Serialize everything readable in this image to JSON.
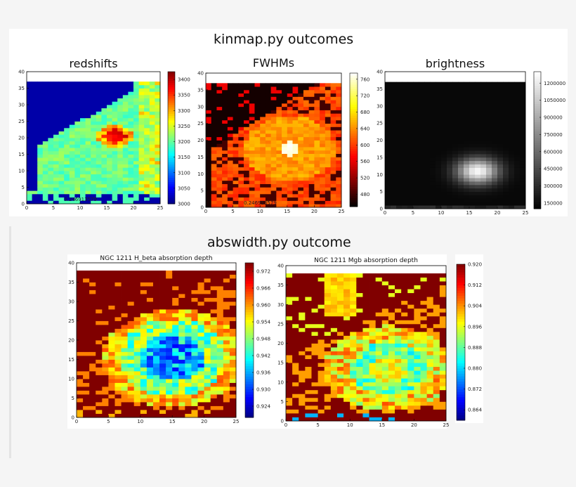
{
  "top_section": {
    "title": "kinmap.py outcomes"
  },
  "bottom_section": {
    "title": "abswidth.py outcome"
  },
  "chart_data": [
    {
      "type": "heatmap",
      "title": "redshifts",
      "colormap": "jet",
      "xlim": [
        0,
        25
      ],
      "ylim": [
        0,
        40
      ],
      "xticks": [
        0,
        5,
        10,
        15,
        20,
        25
      ],
      "yticks": [
        0,
        5,
        10,
        15,
        20,
        25,
        30,
        35,
        40
      ],
      "colorbar": {
        "min": 3000,
        "max": 3425,
        "ticks": [
          3000,
          3050,
          3100,
          3150,
          3200,
          3250,
          3300,
          3350,
          3400
        ]
      },
      "overlay_text": "0.246913579"
    },
    {
      "type": "heatmap",
      "title": "FWHMs",
      "colormap": "hot",
      "xlim": [
        0,
        25
      ],
      "ylim": [
        0,
        40
      ],
      "xticks": [
        0,
        5,
        10,
        15,
        20,
        25
      ],
      "yticks": [
        0,
        5,
        10,
        15,
        20,
        25,
        30,
        35,
        40
      ],
      "colorbar": {
        "min": 450,
        "max": 775,
        "ticks": [
          480,
          520,
          560,
          600,
          640,
          680,
          720,
          760
        ]
      },
      "overlay_text": "0.246913579"
    },
    {
      "type": "heatmap",
      "title": "brightness",
      "colormap": "gray",
      "xlim": [
        0,
        25
      ],
      "ylim": [
        0,
        40
      ],
      "xticks": [
        0,
        5,
        10,
        15,
        20,
        25
      ],
      "yticks": [
        0,
        5,
        10,
        15,
        20,
        25,
        30,
        35,
        40
      ],
      "colorbar": {
        "min": 100000,
        "max": 1300000,
        "ticks": [
          150000,
          300000,
          450000,
          600000,
          750000,
          900000,
          1050000,
          1200000
        ]
      }
    },
    {
      "type": "heatmap",
      "title": "NGC 1211 H_beta absorption depth",
      "colormap": "jet",
      "xlim": [
        0,
        25
      ],
      "ylim": [
        0,
        40
      ],
      "xticks": [
        0,
        5,
        10,
        15,
        20,
        25
      ],
      "yticks": [
        0,
        5,
        10,
        15,
        20,
        25,
        30,
        35,
        40
      ],
      "colorbar": {
        "min": 0.92,
        "max": 0.975,
        "ticks": [
          0.924,
          0.93,
          0.936,
          0.942,
          0.948,
          0.954,
          0.96,
          0.966,
          0.972
        ]
      }
    },
    {
      "type": "heatmap",
      "title": "NGC 1211 Mgb absorption depth",
      "colormap": "jet",
      "xlim": [
        0,
        25
      ],
      "ylim": [
        0,
        40
      ],
      "xticks": [
        0,
        5,
        10,
        15,
        20,
        25
      ],
      "yticks": [
        0,
        5,
        10,
        15,
        20,
        25,
        30,
        35,
        40
      ],
      "colorbar": {
        "min": 0.86,
        "max": 0.92,
        "ticks": [
          0.864,
          0.872,
          0.88,
          0.888,
          0.896,
          0.904,
          0.912,
          0.92
        ]
      }
    }
  ]
}
